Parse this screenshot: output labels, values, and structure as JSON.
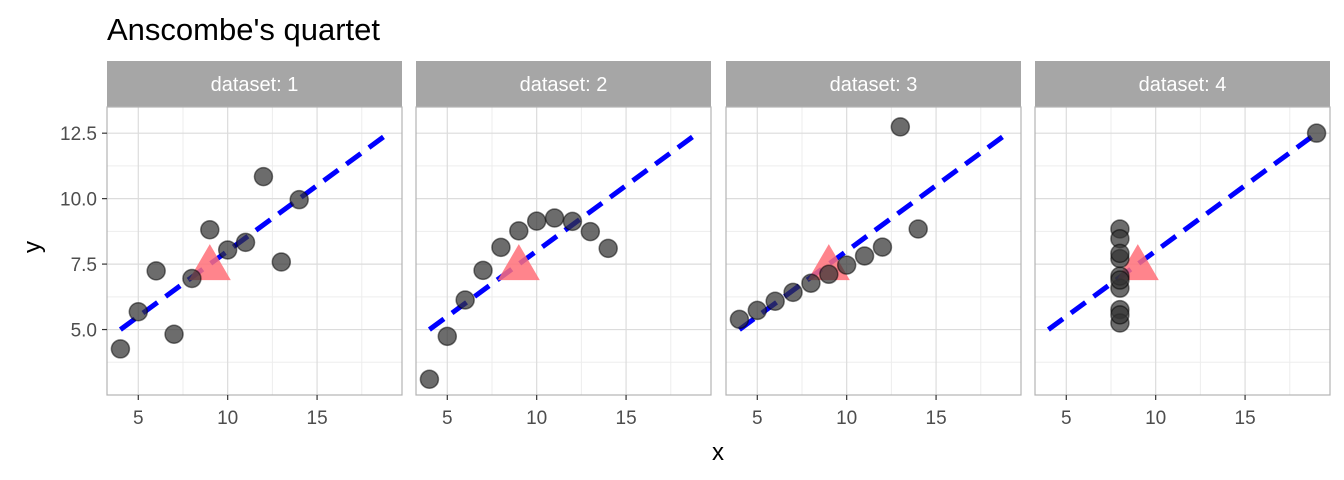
{
  "chart_data": {
    "type": "scatter",
    "title": "Anscombe's quartet",
    "xlabel": "x",
    "ylabel": "y",
    "facet_label_prefix": "dataset: ",
    "xlim": [
      3.25,
      19.75
    ],
    "ylim": [
      2.5,
      13.5
    ],
    "x_ticks": [
      5,
      10,
      15
    ],
    "y_ticks": [
      5.0,
      7.5,
      10.0,
      12.5
    ],
    "y_tick_labels": [
      "5.0",
      "7.5",
      "10.0",
      "12.5"
    ],
    "grid": true,
    "fit_line": {
      "intercept": 3.0,
      "slope": 0.5,
      "x_range": [
        4,
        19
      ],
      "color": "#0000ff",
      "style": "dashed"
    },
    "mean_marker": {
      "x": 9,
      "y": 7.5,
      "shape": "triangle",
      "color": "#ff6e78"
    },
    "point_color": "#333333",
    "panels": [
      {
        "dataset": "1",
        "x": [
          10,
          8,
          13,
          9,
          11,
          14,
          6,
          4,
          12,
          7,
          5
        ],
        "y": [
          8.04,
          6.95,
          7.58,
          8.81,
          8.33,
          9.96,
          7.24,
          4.26,
          10.84,
          4.82,
          5.68
        ]
      },
      {
        "dataset": "2",
        "x": [
          10,
          8,
          13,
          9,
          11,
          14,
          6,
          4,
          12,
          7,
          5
        ],
        "y": [
          9.14,
          8.14,
          8.74,
          8.77,
          9.26,
          8.1,
          6.13,
          3.1,
          9.13,
          7.26,
          4.74
        ]
      },
      {
        "dataset": "3",
        "x": [
          10,
          8,
          13,
          9,
          11,
          14,
          6,
          4,
          12,
          7,
          5
        ],
        "y": [
          7.46,
          6.77,
          12.74,
          7.11,
          7.81,
          8.84,
          6.08,
          5.39,
          8.15,
          6.42,
          5.73
        ]
      },
      {
        "dataset": "4",
        "x": [
          8,
          8,
          8,
          8,
          8,
          8,
          8,
          19,
          8,
          8,
          8
        ],
        "y": [
          6.58,
          5.76,
          7.71,
          8.84,
          8.47,
          7.04,
          5.25,
          12.5,
          5.56,
          7.91,
          6.89
        ]
      }
    ]
  }
}
